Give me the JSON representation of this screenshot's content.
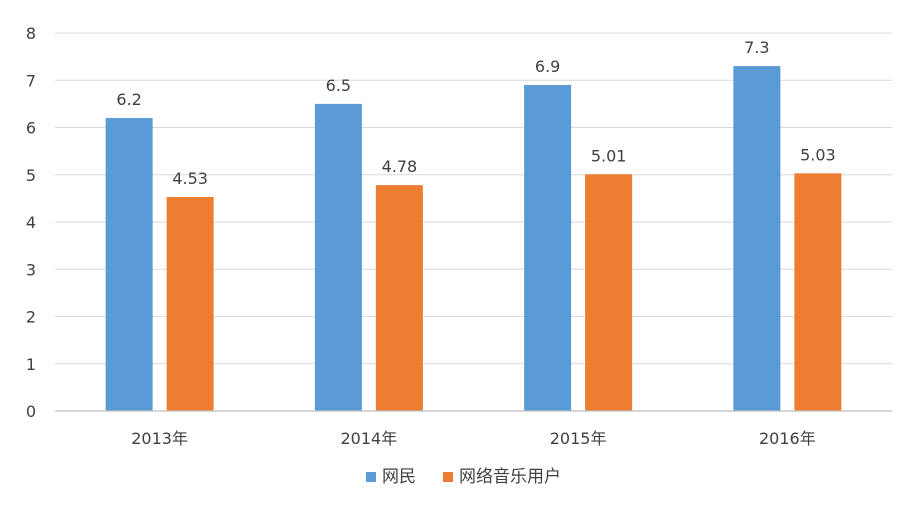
{
  "chart_data": {
    "type": "bar",
    "title": "",
    "xlabel": "",
    "ylabel": "",
    "ylim": [
      0,
      8
    ],
    "yticks": [
      0,
      1,
      2,
      3,
      4,
      5,
      6,
      7,
      8
    ],
    "grid": true,
    "legend_position": "bottom-center",
    "categories": [
      "2013年",
      "2014年",
      "2015年",
      "2016年"
    ],
    "series": [
      {
        "name": "网民",
        "color": "#5B9BD5",
        "values": [
          6.2,
          6.5,
          6.9,
          7.3
        ],
        "labels": [
          "6.2",
          "6.5",
          "6.9",
          "7.3"
        ]
      },
      {
        "name": "网络音乐用户",
        "color": "#ED7D31",
        "values": [
          4.53,
          4.78,
          5.01,
          5.03
        ],
        "labels": [
          "4.53",
          "4.78",
          "5.01",
          "5.03"
        ]
      }
    ]
  }
}
